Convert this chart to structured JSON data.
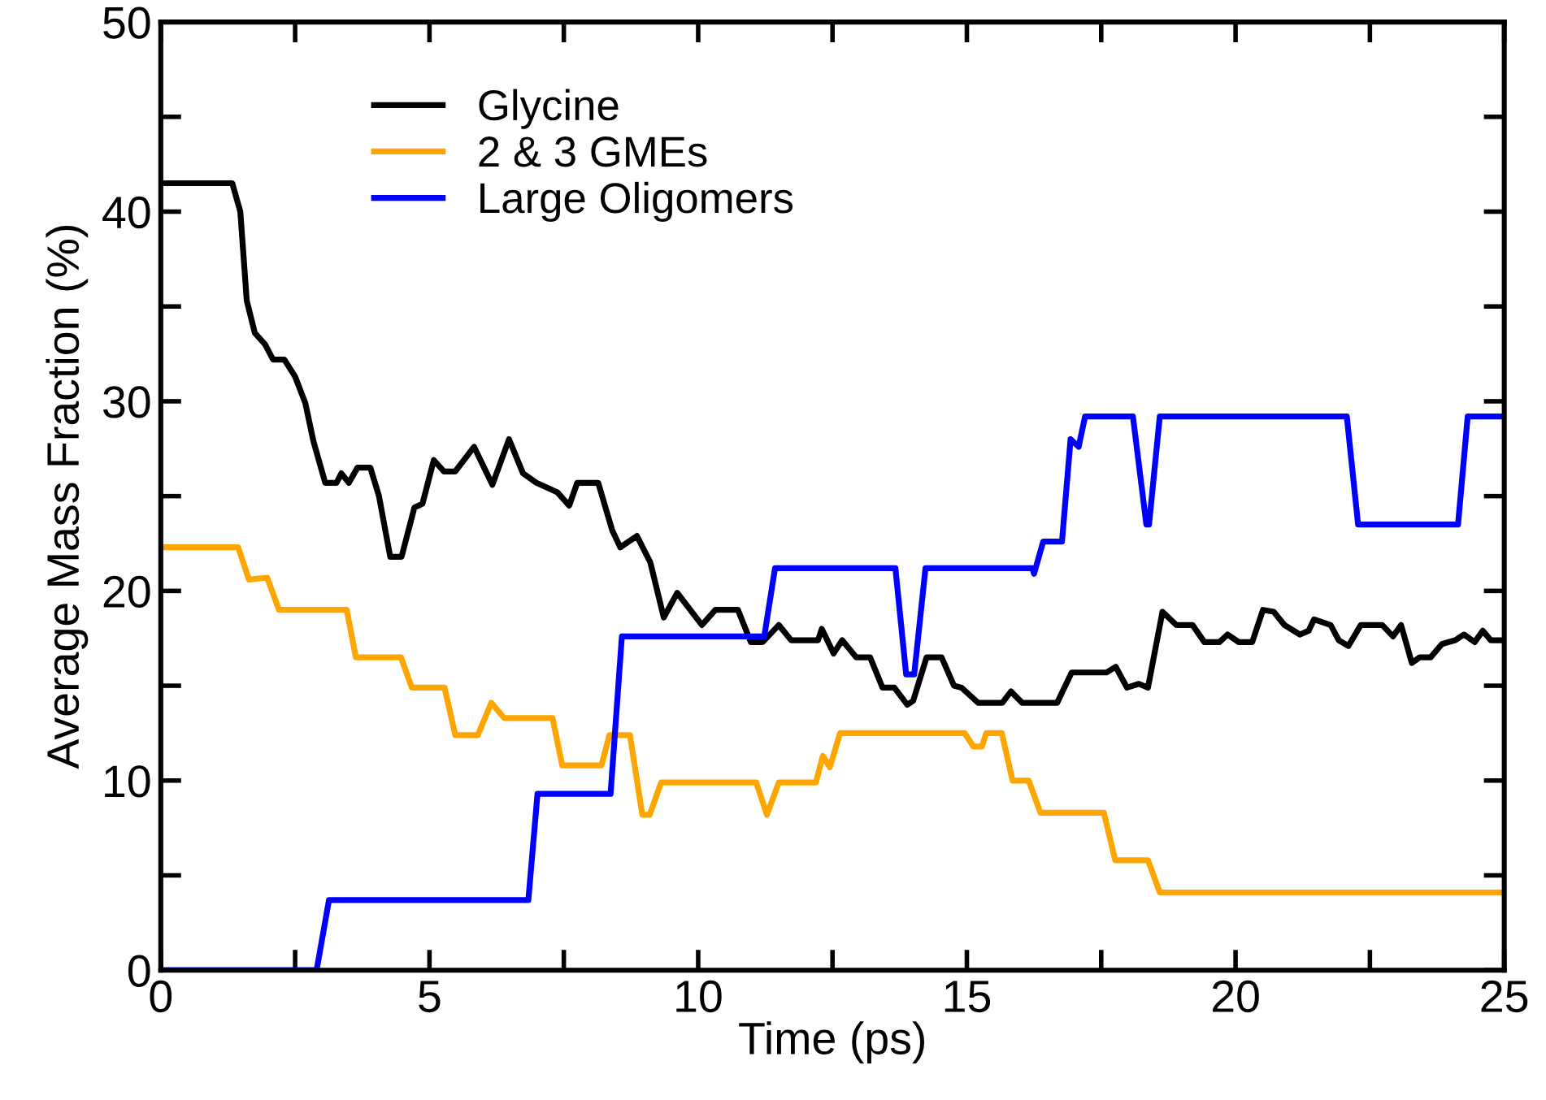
{
  "chart_data": {
    "type": "line",
    "xlabel": "Time (ps)",
    "ylabel": "Average Mass Fraction (%)",
    "xlim": [
      0,
      25
    ],
    "ylim": [
      0,
      50
    ],
    "xticks": [
      0,
      {
        "value": 2.5,
        "label": null
      },
      5,
      {
        "value": 7.5,
        "label": null
      },
      10,
      {
        "value": 12.5,
        "label": null
      },
      15,
      {
        "value": 17.5,
        "label": null
      },
      20,
      {
        "value": 22.5,
        "label": null
      },
      25
    ],
    "yticks": [
      0,
      {
        "value": 5,
        "label": null
      },
      10,
      {
        "value": 15,
        "label": null
      },
      20,
      {
        "value": 25,
        "label": null
      },
      30,
      {
        "value": 35,
        "label": null
      },
      40,
      {
        "value": 45,
        "label": null
      },
      50
    ],
    "legend": "top left",
    "grid": false,
    "marker": "none",
    "line_style": "solid",
    "series": [
      {
        "name": "Glycine",
        "color": "#000000",
        "x": [
          0,
          1.33,
          1.48,
          1.6,
          1.75,
          1.94,
          2.09,
          2.3,
          2.5,
          2.69,
          2.84,
          3.06,
          3.27,
          3.36,
          3.5,
          3.66,
          3.9,
          4.06,
          4.27,
          4.48,
          4.72,
          4.87,
          5.08,
          5.27,
          5.48,
          5.83,
          6.17,
          6.48,
          6.74,
          6.99,
          7.38,
          7.6,
          7.75,
          8.14,
          8.4,
          8.55,
          8.86,
          9.11,
          9.36,
          9.61,
          10.07,
          10.32,
          10.74,
          10.98,
          11.2,
          11.5,
          11.73,
          12.23,
          12.3,
          12.52,
          12.68,
          12.94,
          13.2,
          13.43,
          13.65,
          13.89,
          14.0,
          14.25,
          14.53,
          14.76,
          14.9,
          15.21,
          15.66,
          15.82,
          16.03,
          16.68,
          16.95,
          17.6,
          17.77,
          17.98,
          18.2,
          18.37,
          18.64,
          18.9,
          19.2,
          19.42,
          19.7,
          19.85,
          20.06,
          20.31,
          20.51,
          20.71,
          20.91,
          21.2,
          21.36,
          21.46,
          21.77,
          21.92,
          22.1,
          22.33,
          22.73,
          22.93,
          23.08,
          23.28,
          23.43,
          23.63,
          23.84,
          24.09,
          24.25,
          24.45,
          24.6,
          24.75,
          25
        ],
        "values": [
          41.5,
          41.5,
          40.0,
          35.3,
          33.6,
          33.0,
          32.2,
          32.2,
          31.3,
          29.9,
          27.9,
          25.7,
          25.7,
          26.2,
          25.7,
          26.5,
          26.5,
          25.0,
          21.8,
          21.8,
          24.4,
          24.6,
          26.9,
          26.3,
          26.3,
          27.6,
          25.6,
          28.0,
          26.2,
          25.7,
          25.2,
          24.5,
          25.7,
          25.7,
          23.2,
          22.3,
          22.9,
          21.5,
          18.6,
          19.9,
          18.2,
          19.0,
          19.0,
          17.3,
          17.3,
          18.2,
          17.4,
          17.4,
          18.0,
          16.7,
          17.4,
          16.5,
          16.5,
          14.9,
          14.9,
          14.0,
          14.2,
          16.5,
          16.5,
          15.0,
          14.9,
          14.1,
          14.1,
          14.7,
          14.1,
          14.1,
          15.7,
          15.7,
          16.0,
          14.9,
          15.1,
          14.9,
          18.9,
          18.2,
          18.2,
          17.3,
          17.3,
          17.7,
          17.3,
          17.3,
          19.0,
          18.9,
          18.2,
          17.7,
          17.9,
          18.5,
          18.2,
          17.4,
          17.1,
          18.2,
          18.2,
          17.6,
          18.2,
          16.2,
          16.5,
          16.5,
          17.2,
          17.4,
          17.7,
          17.3,
          17.9,
          17.4,
          17.4
        ]
      },
      {
        "name": "2 & 3 GMEs",
        "color": "#ffa500",
        "x": [
          0,
          1.44,
          1.64,
          1.98,
          2.2,
          3.46,
          3.63,
          4.47,
          4.67,
          5.28,
          5.48,
          5.9,
          6.15,
          6.39,
          7.29,
          7.47,
          8.2,
          8.35,
          8.73,
          8.96,
          9.1,
          9.31,
          11.08,
          11.28,
          11.5,
          12.19,
          12.32,
          12.45,
          12.64,
          14.96,
          15.12,
          15.28,
          15.36,
          15.65,
          15.85,
          16.15,
          16.37,
          17.55,
          17.76,
          18.37,
          18.59,
          25
        ],
        "values": [
          22.3,
          22.3,
          20.6,
          20.7,
          19.0,
          19.0,
          16.5,
          16.5,
          14.9,
          14.9,
          12.4,
          12.4,
          14.1,
          13.3,
          13.3,
          10.8,
          10.8,
          12.4,
          12.4,
          8.2,
          8.2,
          9.9,
          9.9,
          8.2,
          9.9,
          9.9,
          11.3,
          10.7,
          12.5,
          12.5,
          11.8,
          11.8,
          12.5,
          12.5,
          10.0,
          10.0,
          8.3,
          8.3,
          5.8,
          5.8,
          4.1,
          4.1
        ]
      },
      {
        "name": "Large Oligomers",
        "color": "#0000ff",
        "x": [
          0,
          2.9,
          3.13,
          6.84,
          7.01,
          8.37,
          8.58,
          11.23,
          11.43,
          13.67,
          13.87,
          14.02,
          14.23,
          16.22,
          16.25,
          16.42,
          16.77,
          16.93,
          17.08,
          17.2,
          18.09,
          18.34,
          18.39,
          18.59,
          22.07,
          22.28,
          24.14,
          24.32,
          25
        ],
        "values": [
          0,
          0,
          3.7,
          3.7,
          9.3,
          9.3,
          17.6,
          17.6,
          21.2,
          21.2,
          15.6,
          15.6,
          21.2,
          21.2,
          20.9,
          22.6,
          22.6,
          28.0,
          27.6,
          29.2,
          29.2,
          23.5,
          23.5,
          29.2,
          29.2,
          23.5,
          23.5,
          29.2,
          29.2
        ]
      }
    ]
  }
}
